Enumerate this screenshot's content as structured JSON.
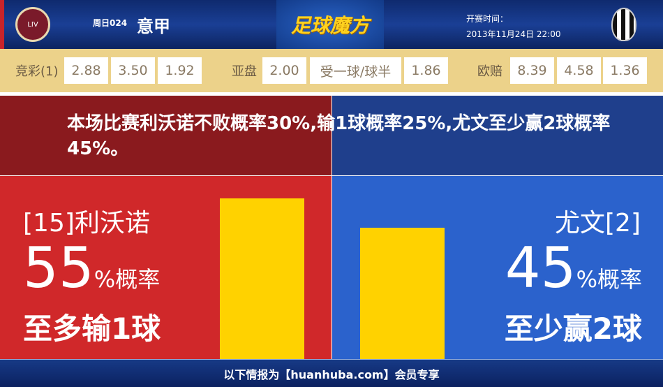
{
  "header": {
    "home_logo": "AS Livorno Calcio 1915",
    "away_logo": "Juventus",
    "round": "周日024",
    "league": "意甲",
    "brand": "足球魔方",
    "kickoff_label": "开赛时间：",
    "kickoff_time": "2013年11月24日 22:00"
  },
  "odds": {
    "jingcai_label": "竞彩(1)",
    "jingcai": [
      "2.88",
      "3.50",
      "1.92"
    ],
    "asian_label": "亚盘",
    "asian": [
      "2.00",
      "受一球/球半",
      "1.86"
    ],
    "euro_label": "欧赔",
    "euro": [
      "8.39",
      "4.58",
      "1.36"
    ]
  },
  "summary": "本场比赛利沃诺不败概率30%,输1球概率25%,尤文至少赢2球概率45%。",
  "home": {
    "name": "[15]利沃诺",
    "percent": 55,
    "percent_text": "55",
    "percent_suffix": "%概率",
    "result": "至多输1球",
    "color": "#d0282a"
  },
  "away": {
    "name": "尤文[2]",
    "percent": 45,
    "percent_text": "45",
    "percent_suffix": "%概率",
    "result": "至少赢2球",
    "color": "#2b62cc"
  },
  "bar_color": "#ffd200",
  "footer": "以下情报为【huanhuba.com】会员专享"
}
